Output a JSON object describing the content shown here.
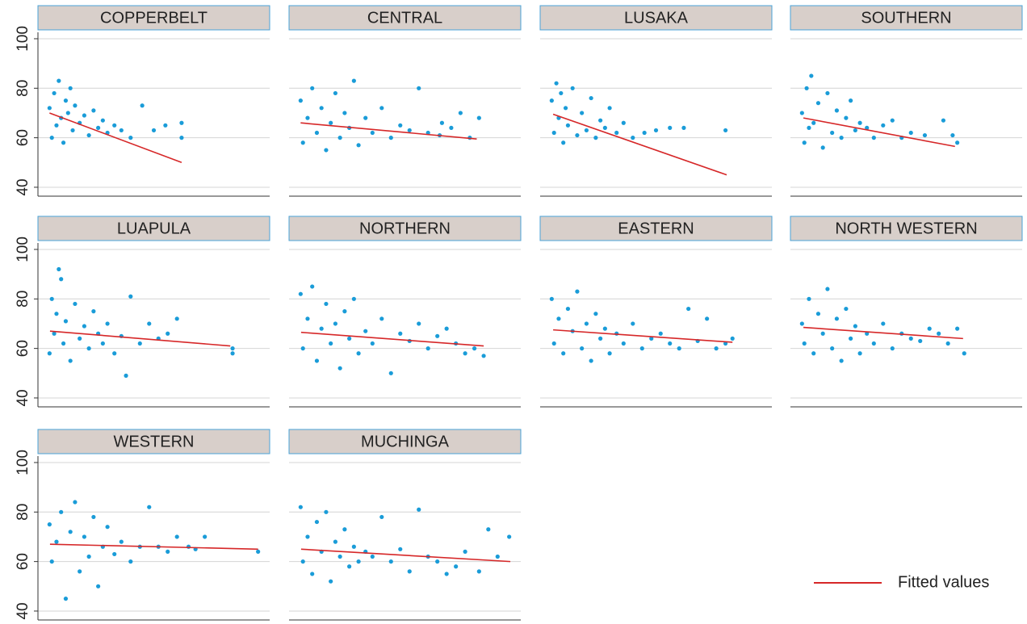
{
  "chart_data": [
    {
      "type": "scatter",
      "title": "COPPERBELT",
      "color": "#1a9cd8",
      "xlim": [
        0,
        100
      ],
      "ylim": [
        36.4,
        102.6
      ],
      "yticks": [
        40,
        60,
        80,
        100
      ],
      "show_ytick_labels": true,
      "x": [
        5,
        6,
        7,
        8,
        9,
        10,
        11,
        12,
        13,
        14,
        15,
        16,
        18,
        20,
        22,
        24,
        26,
        28,
        30,
        33,
        36,
        40,
        45,
        50,
        55,
        62,
        62
      ],
      "values": [
        72,
        60,
        78,
        65,
        83,
        68,
        58,
        75,
        70,
        80,
        63,
        73,
        66,
        69,
        61,
        71,
        64,
        67,
        62,
        65,
        63,
        60,
        73,
        63,
        65,
        66,
        60
      ],
      "fit": {
        "x": [
          5,
          62
        ],
        "values": [
          70,
          50
        ],
        "color": "#d62728"
      }
    },
    {
      "type": "scatter",
      "title": "CENTRAL",
      "color": "#1a9cd8",
      "xlim": [
        0,
        100
      ],
      "ylim": [
        36.4,
        102.6
      ],
      "yticks": [
        40,
        60,
        80,
        100
      ],
      "show_ytick_labels": false,
      "x": [
        5,
        6,
        8,
        10,
        12,
        14,
        16,
        18,
        20,
        22,
        24,
        26,
        28,
        30,
        33,
        36,
        40,
        44,
        48,
        52,
        56,
        60,
        65,
        66,
        70,
        74,
        78,
        82
      ],
      "values": [
        75,
        58,
        68,
        80,
        62,
        72,
        55,
        66,
        78,
        60,
        70,
        64,
        83,
        57,
        68,
        62,
        72,
        60,
        65,
        63,
        80,
        62,
        61,
        66,
        64,
        70,
        60,
        68
      ],
      "fit": {
        "x": [
          5,
          81
        ],
        "values": [
          66,
          59.5
        ],
        "color": "#d62728"
      }
    },
    {
      "type": "scatter",
      "title": "LUSAKA",
      "color": "#1a9cd8",
      "xlim": [
        0,
        100
      ],
      "ylim": [
        36.4,
        102.6
      ],
      "yticks": [
        40,
        60,
        80,
        100
      ],
      "show_ytick_labels": false,
      "x": [
        5,
        6,
        7,
        8,
        9,
        10,
        11,
        12,
        14,
        16,
        18,
        20,
        22,
        24,
        26,
        28,
        30,
        33,
        36,
        40,
        45,
        50,
        56,
        62,
        80
      ],
      "values": [
        75,
        62,
        82,
        68,
        78,
        58,
        72,
        65,
        80,
        61,
        70,
        63,
        76,
        60,
        67,
        64,
        72,
        62,
        66,
        60,
        62,
        63,
        64,
        64,
        63
      ],
      "fit": {
        "x": [
          5.6,
          80.5
        ],
        "values": [
          69.5,
          45
        ],
        "color": "#d62728"
      }
    },
    {
      "type": "scatter",
      "title": "SOUTHERN",
      "color": "#1a9cd8",
      "xlim": [
        0,
        100
      ],
      "ylim": [
        36.4,
        102.6
      ],
      "yticks": [
        40,
        60,
        80,
        100
      ],
      "show_ytick_labels": false,
      "x": [
        5,
        6,
        7,
        8,
        9,
        10,
        12,
        14,
        16,
        18,
        20,
        22,
        24,
        26,
        28,
        30,
        33,
        36,
        40,
        44,
        48,
        52,
        58,
        66,
        70,
        72
      ],
      "values": [
        70,
        58,
        80,
        64,
        85,
        66,
        74,
        56,
        78,
        62,
        71,
        60,
        68,
        75,
        63,
        66,
        64,
        60,
        65,
        67,
        60,
        62,
        61,
        67,
        61,
        58
      ],
      "fit": {
        "x": [
          5.6,
          71
        ],
        "values": [
          68,
          56.5
        ],
        "color": "#d62728"
      }
    },
    {
      "type": "scatter",
      "title": "LUAPULA",
      "color": "#1a9cd8",
      "xlim": [
        0,
        100
      ],
      "ylim": [
        36.4,
        102.6
      ],
      "yticks": [
        40,
        60,
        80,
        100
      ],
      "show_ytick_labels": true,
      "x": [
        5,
        6,
        7,
        8,
        9,
        10,
        11,
        12,
        14,
        16,
        18,
        20,
        22,
        24,
        26,
        28,
        30,
        33,
        36,
        38,
        40,
        44,
        48,
        52,
        56,
        60,
        84,
        84
      ],
      "values": [
        58,
        80,
        66,
        74,
        92,
        88,
        62,
        71,
        55,
        78,
        64,
        69,
        60,
        75,
        66,
        62,
        70,
        58,
        65,
        49,
        81,
        62,
        70,
        64,
        66,
        72,
        60,
        58
      ],
      "fit": {
        "x": [
          5.2,
          83
        ],
        "values": [
          67,
          61
        ],
        "color": "#d62728"
      }
    },
    {
      "type": "scatter",
      "title": "NORTHERN",
      "color": "#1a9cd8",
      "xlim": [
        0,
        100
      ],
      "ylim": [
        36.4,
        102.6
      ],
      "yticks": [
        40,
        60,
        80,
        100
      ],
      "show_ytick_labels": false,
      "x": [
        5,
        6,
        8,
        10,
        12,
        14,
        16,
        18,
        20,
        22,
        24,
        26,
        28,
        30,
        33,
        36,
        40,
        44,
        48,
        52,
        56,
        60,
        64,
        68,
        72,
        76,
        80,
        84
      ],
      "values": [
        82,
        60,
        72,
        85,
        55,
        68,
        78,
        62,
        70,
        52,
        75,
        64,
        80,
        58,
        67,
        62,
        72,
        50,
        66,
        63,
        70,
        60,
        65,
        68,
        62,
        58,
        60,
        57
      ],
      "fit": {
        "x": [
          5.2,
          84
        ],
        "values": [
          66.5,
          61
        ],
        "color": "#d62728"
      }
    },
    {
      "type": "scatter",
      "title": "EASTERN",
      "color": "#1a9cd8",
      "xlim": [
        0,
        100
      ],
      "ylim": [
        36.4,
        102.6
      ],
      "yticks": [
        40,
        60,
        80,
        100
      ],
      "show_ytick_labels": false,
      "x": [
        5,
        6,
        8,
        10,
        12,
        14,
        16,
        18,
        20,
        22,
        24,
        26,
        28,
        30,
        33,
        36,
        40,
        44,
        48,
        52,
        56,
        60,
        64,
        68,
        72,
        76,
        80,
        83
      ],
      "values": [
        80,
        62,
        72,
        58,
        76,
        67,
        83,
        60,
        70,
        55,
        74,
        64,
        68,
        58,
        66,
        62,
        70,
        60,
        64,
        66,
        62,
        60,
        76,
        63,
        72,
        60,
        62,
        64
      ],
      "fit": {
        "x": [
          5.6,
          83
        ],
        "values": [
          67.5,
          62.5
        ],
        "color": "#d62728"
      }
    },
    {
      "type": "scatter",
      "title": "NORTH WESTERN",
      "color": "#1a9cd8",
      "xlim": [
        0,
        100
      ],
      "ylim": [
        36.4,
        102.6
      ],
      "yticks": [
        40,
        60,
        80,
        100
      ],
      "show_ytick_labels": false,
      "x": [
        5,
        6,
        8,
        10,
        12,
        14,
        16,
        18,
        20,
        22,
        24,
        26,
        28,
        30,
        33,
        36,
        40,
        44,
        48,
        52,
        56,
        60,
        64,
        68,
        72,
        75
      ],
      "values": [
        70,
        62,
        80,
        58,
        74,
        66,
        84,
        60,
        72,
        55,
        76,
        64,
        69,
        58,
        66,
        62,
        70,
        60,
        66,
        64,
        63,
        68,
        66,
        62,
        68,
        58
      ],
      "fit": {
        "x": [
          5.6,
          74.5
        ],
        "values": [
          68.5,
          64
        ],
        "color": "#d62728"
      }
    },
    {
      "type": "scatter",
      "title": "WESTERN",
      "color": "#1a9cd8",
      "xlim": [
        0,
        100
      ],
      "ylim": [
        36.4,
        102.6
      ],
      "yticks": [
        40,
        60,
        80,
        100
      ],
      "show_ytick_labels": true,
      "x": [
        5,
        6,
        8,
        10,
        12,
        14,
        16,
        18,
        20,
        22,
        24,
        26,
        28,
        30,
        33,
        36,
        40,
        44,
        48,
        52,
        56,
        60,
        65,
        68,
        72,
        95
      ],
      "values": [
        75,
        60,
        68,
        80,
        45,
        72,
        84,
        56,
        70,
        62,
        78,
        50,
        66,
        74,
        63,
        68,
        60,
        66,
        82,
        66,
        64,
        70,
        66,
        65,
        70,
        64
      ],
      "fit": {
        "x": [
          5.2,
          95
        ],
        "values": [
          67,
          65
        ],
        "color": "#d62728"
      }
    },
    {
      "type": "scatter",
      "title": "MUCHINGA",
      "color": "#1a9cd8",
      "xlim": [
        0,
        100
      ],
      "ylim": [
        36.4,
        102.6
      ],
      "yticks": [
        40,
        60,
        80,
        100
      ],
      "show_ytick_labels": false,
      "x": [
        5,
        6,
        8,
        10,
        12,
        14,
        16,
        18,
        20,
        22,
        24,
        26,
        28,
        30,
        33,
        36,
        40,
        44,
        48,
        52,
        56,
        60,
        64,
        68,
        72,
        76,
        82,
        86,
        90,
        95
      ],
      "values": [
        82,
        60,
        70,
        55,
        76,
        64,
        80,
        52,
        68,
        62,
        73,
        58,
        66,
        60,
        64,
        62,
        78,
        60,
        65,
        56,
        81,
        62,
        60,
        55,
        58,
        64,
        56,
        73,
        62,
        70
      ],
      "fit": {
        "x": [
          5.2,
          95.5
        ],
        "values": [
          65,
          60
        ],
        "color": "#d62728"
      }
    }
  ],
  "legend": {
    "label": "Fitted values",
    "color": "#d62728",
    "corner": "bottom-right"
  }
}
